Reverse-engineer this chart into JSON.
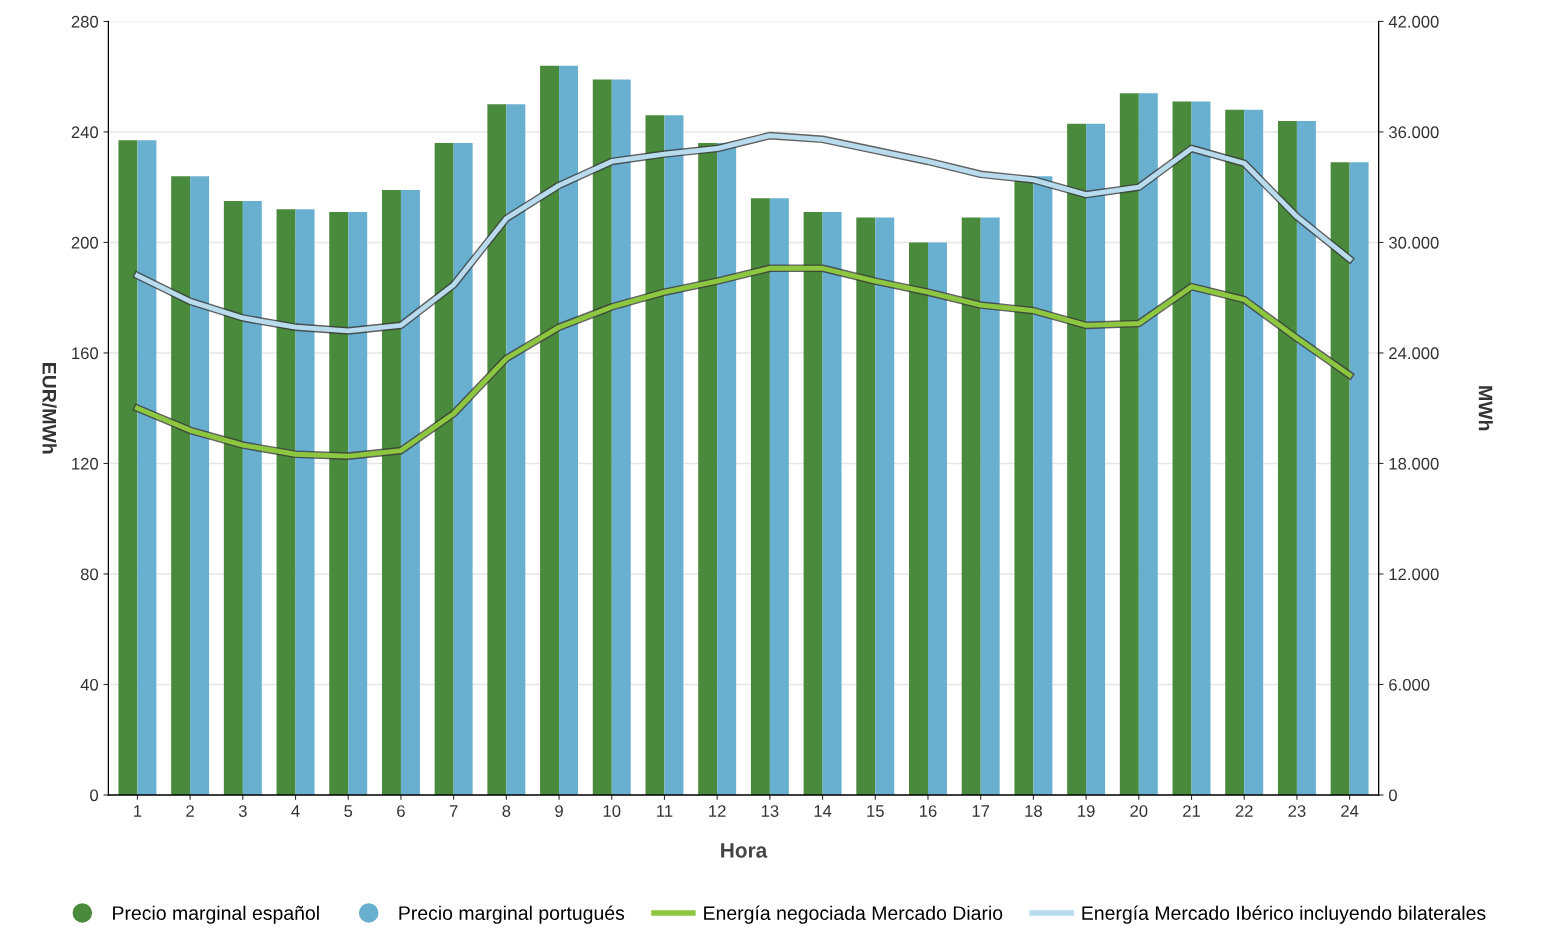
{
  "chart_data": {
    "type": "bar",
    "xlabel": "Hora",
    "ylabel": "EUR/MWh",
    "y2label": "MWh",
    "categories": [
      "1",
      "2",
      "3",
      "4",
      "5",
      "6",
      "7",
      "8",
      "9",
      "10",
      "11",
      "12",
      "13",
      "14",
      "15",
      "16",
      "17",
      "18",
      "19",
      "20",
      "21",
      "22",
      "23",
      "24"
    ],
    "series": [
      {
        "name": "Precio marginal español",
        "color": "#4a8a3c",
        "values": [
          237,
          224,
          215,
          212,
          211,
          219,
          236,
          250,
          264,
          259,
          246,
          236,
          216,
          211,
          209,
          200,
          209,
          224,
          243,
          254,
          251,
          248,
          244,
          229
        ]
      },
      {
        "name": "Precio marginal portugués",
        "color": "#69afd0",
        "values": [
          237,
          224,
          215,
          212,
          211,
          219,
          236,
          250,
          264,
          259,
          246,
          236,
          216,
          211,
          209,
          200,
          209,
          224,
          243,
          254,
          251,
          248,
          244,
          229
        ]
      },
      {
        "name": "Energía negociada Mercado Diario",
        "type": "line",
        "axis": "y2",
        "color": "#8dc63f",
        "values": [
          21000,
          19800,
          19000,
          18500,
          18400,
          18700,
          20700,
          23700,
          25400,
          26500,
          27300,
          27900,
          28600,
          28600,
          27900,
          27300,
          26600,
          26300,
          25500,
          25600,
          27600,
          26900,
          24800,
          22800
        ]
      },
      {
        "name": "Energía Mercado Ibérico incluyendo bilaterales",
        "type": "line",
        "axis": "y2",
        "color": "#b8dcee",
        "values": [
          28200,
          26800,
          25900,
          25400,
          25200,
          25500,
          27700,
          31300,
          33100,
          34400,
          34800,
          35100,
          35800,
          35600,
          35000,
          34400,
          33700,
          33400,
          32600,
          33000,
          35100,
          34300,
          31400,
          29100
        ]
      }
    ],
    "ylim": [
      0,
      280
    ],
    "yticks": [
      0,
      40,
      80,
      120,
      160,
      200,
      240,
      280
    ],
    "y2lim": [
      0,
      42000
    ],
    "y2ticks": [
      {
        "value": 0,
        "label": "0"
      },
      {
        "value": 6000,
        "label": "6.000"
      },
      {
        "value": 12000,
        "label": "12.000"
      },
      {
        "value": 18000,
        "label": "18.000"
      },
      {
        "value": 24000,
        "label": "24.000"
      },
      {
        "value": 30000,
        "label": "30.000"
      },
      {
        "value": 36000,
        "label": "36.000"
      },
      {
        "value": 42000,
        "label": "42.000"
      }
    ],
    "grid": "y",
    "legend": "bottom",
    "marker": "none"
  }
}
